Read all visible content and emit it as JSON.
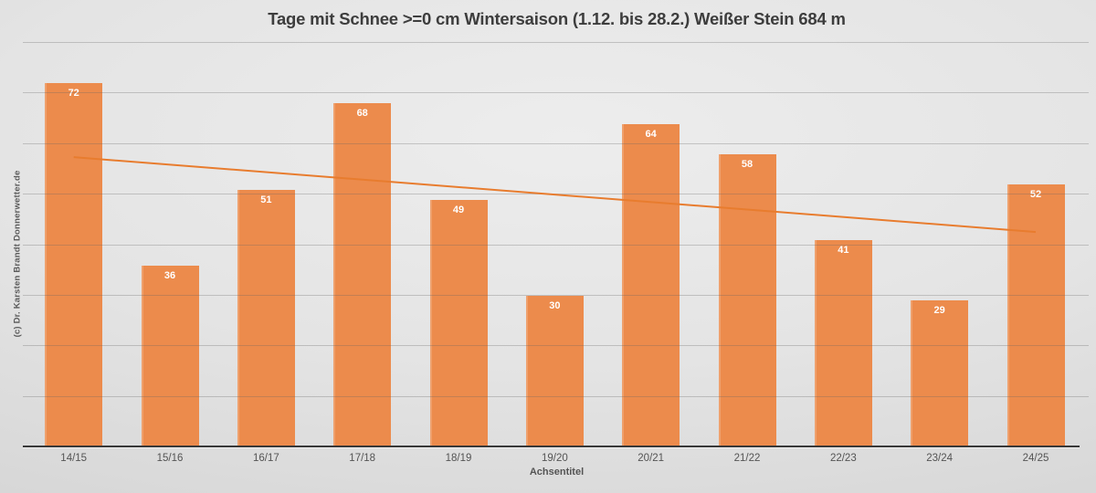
{
  "chart_data": {
    "type": "bar",
    "title": "Tage mit Schnee >=0 cm Wintersaison (1.12. bis 28.2.) Weißer Stein 684 m",
    "categories": [
      "14/15",
      "15/16",
      "16/17",
      "17/18",
      "18/19",
      "19/20",
      "20/21",
      "21/22",
      "22/23",
      "23/24",
      "24/25"
    ],
    "values": [
      72,
      36,
      51,
      68,
      49,
      30,
      64,
      58,
      41,
      29,
      52
    ],
    "xlabel": "Achsentitel",
    "ylabel": "",
    "ylim": [
      0,
      80
    ],
    "grid_step": 10,
    "grid": true,
    "y_tick_labels_visible": false,
    "legend": "none",
    "bar_color": "#EC8B4C",
    "data_label_color": "#FFFFFF",
    "trendline": {
      "start_value": 57.4,
      "end_value": 42.6,
      "color": "#E87C2E"
    },
    "watermark": "(c) Dr. Karsten Brandt Donnerwetter.de"
  }
}
